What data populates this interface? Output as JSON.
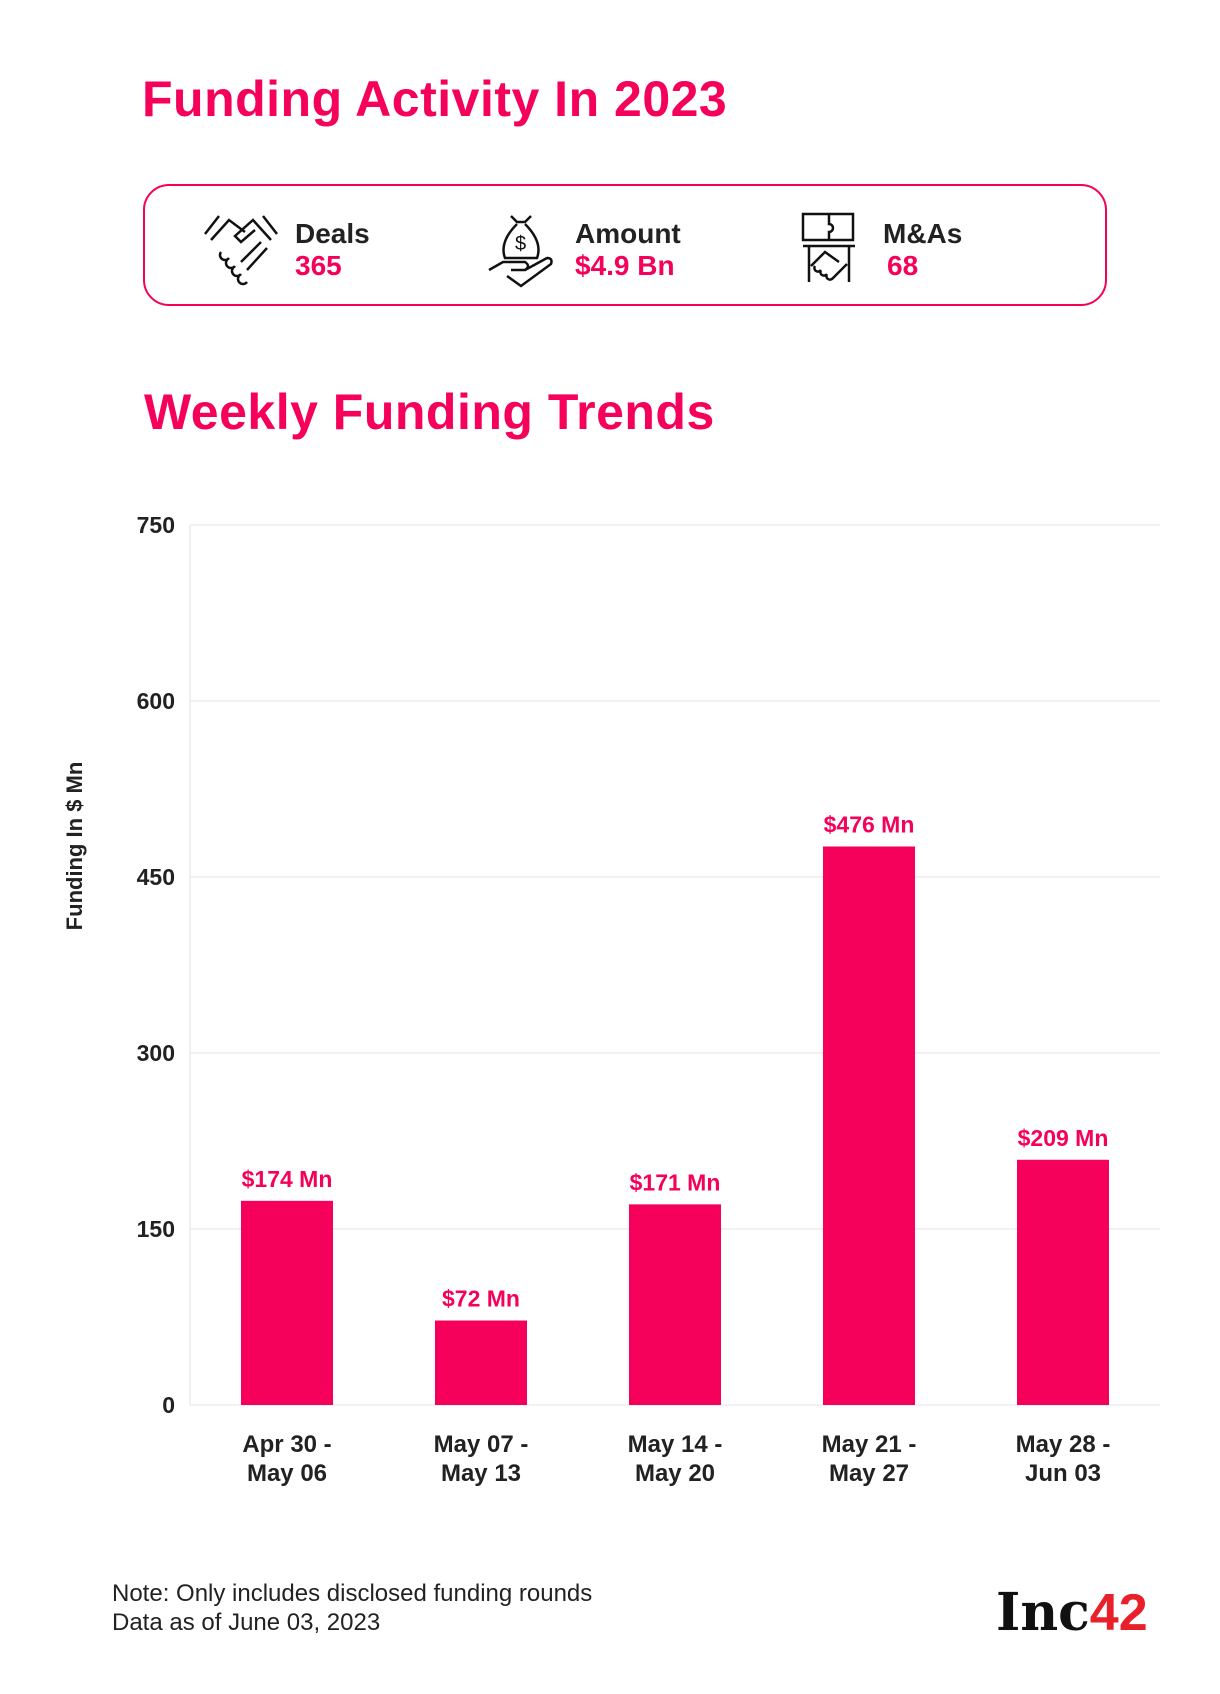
{
  "header": {
    "title": "Funding Activity In 2023"
  },
  "stats": [
    {
      "icon": "handshake-icon",
      "label": "Deals",
      "value": "365"
    },
    {
      "icon": "money-bag-hand-icon",
      "label": "Amount",
      "value": "$4.9 Bn"
    },
    {
      "icon": "puzzle-handshake-icon",
      "label": "M&As",
      "value": "68"
    }
  ],
  "section_title": "Weekly Funding Trends",
  "chart_data": {
    "type": "bar",
    "title": "Weekly Funding Trends",
    "ylabel": "Funding In $ Mn",
    "xlabel": "",
    "ylim": [
      0,
      750
    ],
    "yticks": [
      "0",
      "150",
      "300",
      "450",
      "600",
      "750"
    ],
    "categories": [
      [
        "Apr 30 -",
        "May 06"
      ],
      [
        "May 07 -",
        "May 13"
      ],
      [
        "May 14 -",
        "May 20"
      ],
      [
        "May 21 -",
        "May 27"
      ],
      [
        "May 28 -",
        "Jun 03"
      ]
    ],
    "values": [
      174,
      72,
      171,
      476,
      209
    ],
    "data_labels": [
      "$174 Mn",
      "$72 Mn",
      "$171 Mn",
      "$476 Mn",
      "$209 Mn"
    ],
    "grid": true,
    "bar_color": "#f5005a"
  },
  "footer": {
    "note": "Note: Only includes disclosed funding rounds",
    "data_as_of": "Data as of June 03, 2023",
    "logo_text": "Inc",
    "logo_number": "42"
  }
}
